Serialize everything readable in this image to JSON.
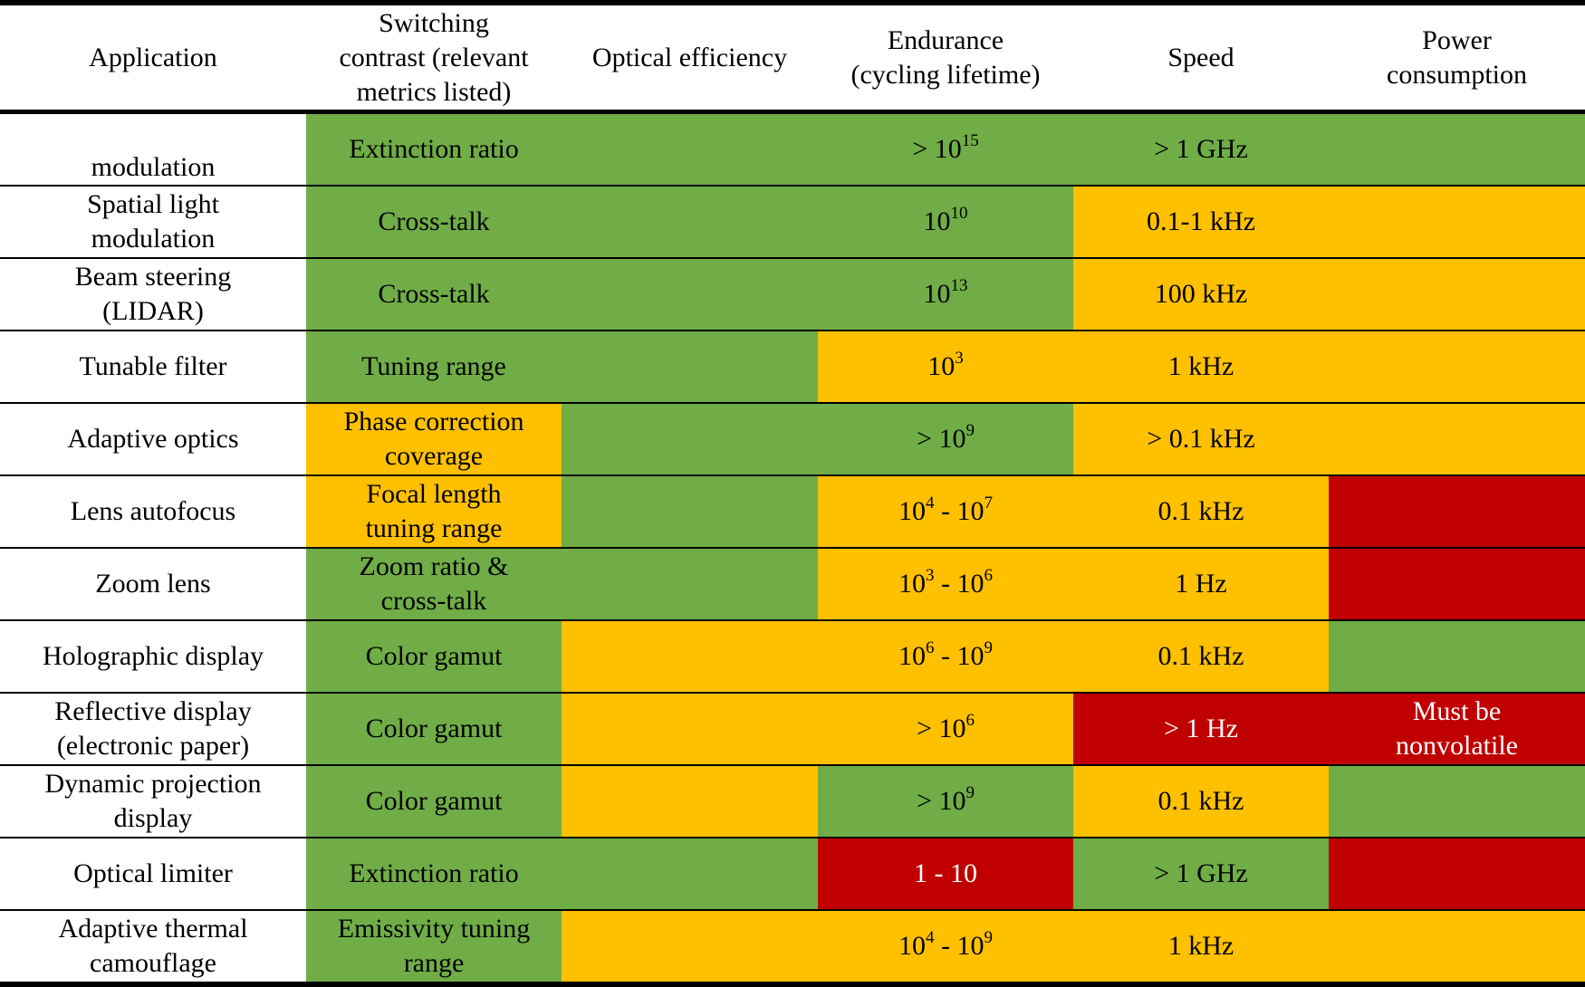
{
  "header": {
    "application": "Application",
    "switching_contrast": "Switching\ncontrast (relevant\nmetrics listed)",
    "optical_efficiency": "Optical efficiency",
    "endurance": "Endurance\n(cycling lifetime)",
    "speed": "Speed",
    "power": "Power\nconsumption"
  },
  "colors": {
    "green": "#70ad47",
    "yellow": "#ffc000",
    "red": "#c00000"
  },
  "rows": [
    {
      "application": "modulation",
      "contrast": "Extinction ratio",
      "endurance_base": "> 10",
      "endurance_exp": "15",
      "endurance_mid": "",
      "endurance_base2": "",
      "endurance_exp2": "",
      "speed": "> 1 GHz",
      "power": "",
      "colors": [
        "green",
        "green",
        "green",
        "green",
        "green"
      ]
    },
    {
      "application": "Spatial light\nmodulation",
      "contrast": "Cross-talk",
      "endurance_base": "10",
      "endurance_exp": "10",
      "endurance_mid": "",
      "endurance_base2": "",
      "endurance_exp2": "",
      "speed": "0.1-1 kHz",
      "power": "",
      "colors": [
        "green",
        "green",
        "green",
        "yellow",
        "yellow"
      ]
    },
    {
      "application": "Beam steering\n(LIDAR)",
      "contrast": "Cross-talk",
      "endurance_base": "10",
      "endurance_exp": "13",
      "endurance_mid": "",
      "endurance_base2": "",
      "endurance_exp2": "",
      "speed": "100 kHz",
      "power": "",
      "colors": [
        "green",
        "green",
        "green",
        "yellow",
        "yellow"
      ]
    },
    {
      "application": "Tunable filter",
      "contrast": "Tuning range",
      "endurance_base": "10",
      "endurance_exp": "3",
      "endurance_mid": "",
      "endurance_base2": "",
      "endurance_exp2": "",
      "speed": "1 kHz",
      "power": "",
      "colors": [
        "green",
        "green",
        "yellow",
        "yellow",
        "yellow"
      ]
    },
    {
      "application": "Adaptive optics",
      "contrast": "Phase correction\ncoverage",
      "endurance_base": "> 10",
      "endurance_exp": "9",
      "endurance_mid": "",
      "endurance_base2": "",
      "endurance_exp2": "",
      "speed": "> 0.1 kHz",
      "power": "",
      "colors": [
        "yellow",
        "green",
        "green",
        "yellow",
        "yellow"
      ]
    },
    {
      "application": "Lens autofocus",
      "contrast": "Focal length\ntuning range",
      "endurance_base": "10",
      "endurance_exp": "4",
      "endurance_mid": " - 10",
      "endurance_base2": "",
      "endurance_exp2": "7",
      "speed": "0.1 kHz",
      "power": "",
      "colors": [
        "yellow",
        "green",
        "yellow",
        "yellow",
        "red"
      ]
    },
    {
      "application": "Zoom lens",
      "contrast": "Zoom ratio &\ncross-talk",
      "endurance_base": "10",
      "endurance_exp": "3",
      "endurance_mid": " - 10",
      "endurance_base2": "",
      "endurance_exp2": "6",
      "speed": "1 Hz",
      "power": "",
      "colors": [
        "green",
        "green",
        "yellow",
        "yellow",
        "red"
      ]
    },
    {
      "application": "Holographic display",
      "contrast": "Color gamut",
      "endurance_base": "10",
      "endurance_exp": "6",
      "endurance_mid": " - 10",
      "endurance_base2": "",
      "endurance_exp2": "9",
      "speed": "0.1 kHz",
      "power": "",
      "colors": [
        "green",
        "yellow",
        "yellow",
        "yellow",
        "green"
      ]
    },
    {
      "application": "Reflective display\n(electronic paper)",
      "contrast": "Color gamut",
      "endurance_base": "> 10",
      "endurance_exp": "6",
      "endurance_mid": "",
      "endurance_base2": "",
      "endurance_exp2": "",
      "speed": "> 1 Hz",
      "power": "Must be\nnonvolatile",
      "colors": [
        "green",
        "yellow",
        "yellow",
        "red",
        "red"
      ]
    },
    {
      "application": "Dynamic projection\ndisplay",
      "contrast": "Color gamut",
      "endurance_base": "> 10",
      "endurance_exp": "9",
      "endurance_mid": "",
      "endurance_base2": "",
      "endurance_exp2": "",
      "speed": "0.1 kHz",
      "power": "",
      "colors": [
        "green",
        "yellow",
        "green",
        "yellow",
        "green"
      ]
    },
    {
      "application": "Optical limiter",
      "contrast": "Extinction ratio",
      "endurance_base": "1 - 10",
      "endurance_exp": "",
      "endurance_mid": "",
      "endurance_base2": "",
      "endurance_exp2": "",
      "speed": "> 1 GHz",
      "power": "",
      "colors": [
        "green",
        "green",
        "red",
        "green",
        "red"
      ]
    },
    {
      "application": "Adaptive thermal\ncamouflage",
      "contrast": "Emissivity tuning\nrange",
      "endurance_base": "10",
      "endurance_exp": "4",
      "endurance_mid": " - 10",
      "endurance_base2": "",
      "endurance_exp2": "9",
      "speed": "1 kHz",
      "power": "",
      "colors": [
        "green",
        "yellow",
        "yellow",
        "yellow",
        "yellow"
      ]
    }
  ]
}
